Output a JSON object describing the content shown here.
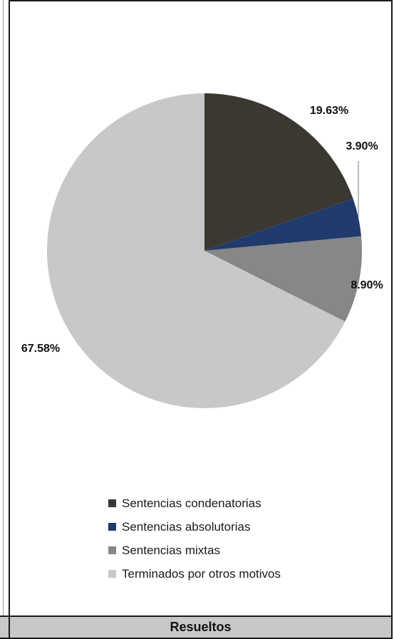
{
  "chart_data": {
    "type": "pie",
    "slices": [
      {
        "label": "Sentencias condenatorias",
        "value": 19.63,
        "display": "19.63%",
        "color": "#3b3731"
      },
      {
        "label": "Sentencias absolutorias",
        "value": 3.9,
        "display": "3.90%",
        "color": "#1f3a6b"
      },
      {
        "label": "Sentencias mixtas",
        "value": 8.9,
        "display": "8.90%",
        "color": "#878787"
      },
      {
        "label": "Terminados por otros motivos",
        "value": 67.58,
        "display": "67.58%",
        "color": "#c8c8c8"
      }
    ],
    "legend_position": "bottom"
  },
  "footer": {
    "title": "Resueltos"
  }
}
